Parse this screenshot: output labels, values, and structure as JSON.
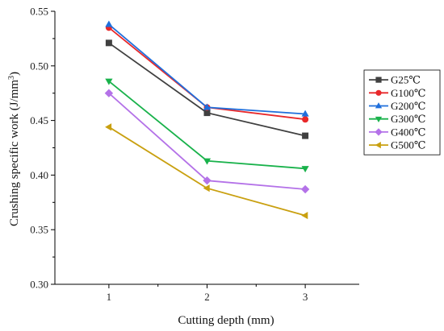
{
  "chart_data": {
    "type": "line",
    "title": "",
    "xlabel": "Cutting depth (mm)",
    "ylabel_main": "Crushing specific work (J/mm",
    "ylabel_sup": "3",
    "ylabel_close": ")",
    "x": [
      1,
      2,
      3
    ],
    "x_tick_labels": [
      "1",
      "2",
      "3"
    ],
    "xlim": [
      0.45,
      3.55
    ],
    "ylim": [
      0.3,
      0.55
    ],
    "y_ticks": [
      0.3,
      0.35,
      0.4,
      0.45,
      0.5,
      0.55
    ],
    "y_tick_labels": [
      "0.30",
      "0.35",
      "0.40",
      "0.45",
      "0.50",
      "0.55"
    ],
    "grid": false,
    "legend_position": "right",
    "series": [
      {
        "name": "G25℃",
        "color": "#404040",
        "marker": "square",
        "values": [
          0.521,
          0.457,
          0.436
        ]
      },
      {
        "name": "G100℃",
        "color": "#e8282a",
        "marker": "circle",
        "values": [
          0.535,
          0.462,
          0.451
        ]
      },
      {
        "name": "G200℃",
        "color": "#1f6fdc",
        "marker": "triangle-up",
        "values": [
          0.538,
          0.462,
          0.456
        ]
      },
      {
        "name": "G300℃",
        "color": "#19b24b",
        "marker": "triangle-down",
        "values": [
          0.486,
          0.413,
          0.406
        ]
      },
      {
        "name": "G400℃",
        "color": "#b472e8",
        "marker": "diamond",
        "values": [
          0.475,
          0.395,
          0.387
        ]
      },
      {
        "name": "G500℃",
        "color": "#c9a010",
        "marker": "triangle-left",
        "values": [
          0.444,
          0.388,
          0.363
        ]
      }
    ]
  }
}
